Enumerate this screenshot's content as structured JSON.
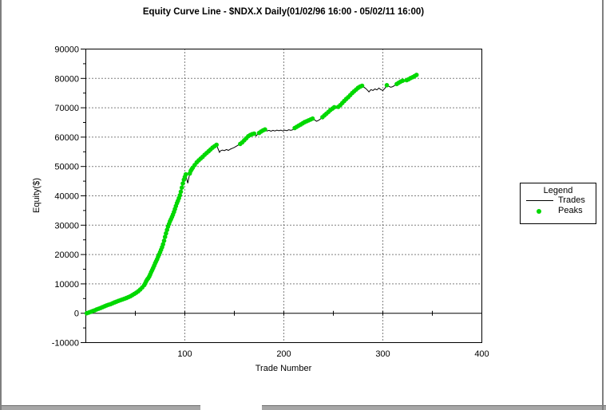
{
  "chart": {
    "title": "Equity Curve Line - $NDX.X Daily(01/02/96 16:00 - 05/02/11 16:00)",
    "x_axis": {
      "label": "Trade Number",
      "tick_labels": [
        100,
        200,
        300,
        400
      ],
      "minor_tick_step": 50,
      "min": 0,
      "max": 400
    },
    "y_axis": {
      "label": "Equity($)",
      "tick_labels": [
        90000,
        80000,
        70000,
        60000,
        50000,
        40000,
        30000,
        20000,
        10000,
        0,
        -10000
      ],
      "minor_tick_step": 5000,
      "min": -10000,
      "max": 90000
    },
    "legend": {
      "title": "Legend",
      "items": [
        {
          "label": "Trades",
          "type": "line",
          "color": "#000000"
        },
        {
          "label": "Peaks",
          "type": "dot",
          "color": "#00d800"
        }
      ]
    }
  },
  "chart_data": {
    "type": "line",
    "title": "Equity Curve Line - $NDX.X Daily(01/02/96 16:00 - 05/02/11 16:00)",
    "xlabel": "Trade Number",
    "ylabel": "Equity($)",
    "xlim": [
      0,
      400
    ],
    "ylim": [
      -10000,
      90000
    ],
    "grid": "dotted horizontal every 10000 (10000-80000), dotted vertical at 100/200/300, solid zero line with ticks every 50 trades",
    "legend_position": "right",
    "series": [
      {
        "name": "Trades",
        "style": "line",
        "color": "#000000",
        "points": [
          [
            1,
            0
          ],
          [
            3,
            250
          ],
          [
            5,
            500
          ],
          [
            7,
            750
          ],
          [
            9,
            1000
          ],
          [
            11,
            1300
          ],
          [
            13,
            1550
          ],
          [
            15,
            1800
          ],
          [
            17,
            2100
          ],
          [
            19,
            2400
          ],
          [
            21,
            2650
          ],
          [
            23,
            2900
          ],
          [
            25,
            3100
          ],
          [
            27,
            3400
          ],
          [
            29,
            3700
          ],
          [
            31,
            3950
          ],
          [
            33,
            4200
          ],
          [
            35,
            4450
          ],
          [
            37,
            4700
          ],
          [
            39,
            4950
          ],
          [
            41,
            5200
          ],
          [
            43,
            5500
          ],
          [
            45,
            5800
          ],
          [
            47,
            6200
          ],
          [
            49,
            6600
          ],
          [
            51,
            7000
          ],
          [
            53,
            7500
          ],
          [
            55,
            8100
          ],
          [
            57,
            8800
          ],
          [
            59,
            9600
          ],
          [
            60,
            10200
          ],
          [
            61,
            10900
          ],
          [
            62,
            11500
          ],
          [
            63,
            11900
          ],
          [
            64,
            12500
          ],
          [
            65,
            13200
          ],
          [
            66,
            14000
          ],
          [
            67,
            14700
          ],
          [
            68,
            15400
          ],
          [
            69,
            16200
          ],
          [
            70,
            17000
          ],
          [
            71,
            17700
          ],
          [
            72,
            18400
          ],
          [
            73,
            19200
          ],
          [
            74,
            20000
          ],
          [
            75,
            20800
          ],
          [
            76,
            21600
          ],
          [
            77,
            22500
          ],
          [
            78,
            23500
          ],
          [
            79,
            24700
          ],
          [
            80,
            26000
          ],
          [
            81,
            27200
          ],
          [
            82,
            28400
          ],
          [
            83,
            29500
          ],
          [
            84,
            30400
          ],
          [
            85,
            31300
          ],
          [
            86,
            32000
          ],
          [
            87,
            32800
          ],
          [
            88,
            33600
          ],
          [
            89,
            34500
          ],
          [
            90,
            35500
          ],
          [
            91,
            36500
          ],
          [
            92,
            37500
          ],
          [
            93,
            38300
          ],
          [
            94,
            39200
          ],
          [
            95,
            40200
          ],
          [
            96,
            41400
          ],
          [
            97,
            42800
          ],
          [
            98,
            44200
          ],
          [
            99,
            45500
          ],
          [
            100,
            46400
          ],
          [
            101,
            47300
          ],
          [
            102,
            45600
          ],
          [
            103,
            44300
          ],
          [
            104,
            46100
          ],
          [
            105,
            47600
          ],
          [
            106,
            48500
          ],
          [
            107,
            49100
          ],
          [
            108,
            49600
          ],
          [
            110,
            50500
          ],
          [
            112,
            51400
          ],
          [
            114,
            52100
          ],
          [
            116,
            52700
          ],
          [
            118,
            53300
          ],
          [
            120,
            54000
          ],
          [
            122,
            54600
          ],
          [
            124,
            55200
          ],
          [
            126,
            55800
          ],
          [
            128,
            56400
          ],
          [
            130,
            56900
          ],
          [
            132,
            57400
          ],
          [
            133,
            56500
          ],
          [
            134,
            55600
          ],
          [
            135,
            54800
          ],
          [
            136,
            55300
          ],
          [
            138,
            55600
          ],
          [
            140,
            55400
          ],
          [
            142,
            55800
          ],
          [
            144,
            55500
          ],
          [
            146,
            55900
          ],
          [
            148,
            56200
          ],
          [
            150,
            56500
          ],
          [
            152,
            56900
          ],
          [
            154,
            57300
          ],
          [
            156,
            57700
          ],
          [
            158,
            58200
          ],
          [
            160,
            58900
          ],
          [
            162,
            59600
          ],
          [
            164,
            60300
          ],
          [
            166,
            60700
          ],
          [
            168,
            61000
          ],
          [
            170,
            61200
          ],
          [
            171,
            60700
          ],
          [
            172,
            60400
          ],
          [
            173,
            60800
          ],
          [
            175,
            61400
          ],
          [
            177,
            61900
          ],
          [
            179,
            62300
          ],
          [
            181,
            62600
          ],
          [
            183,
            62100
          ],
          [
            185,
            62300
          ],
          [
            187,
            62000
          ],
          [
            189,
            62300
          ],
          [
            191,
            62100
          ],
          [
            193,
            62400
          ],
          [
            195,
            62200
          ],
          [
            197,
            62400
          ],
          [
            199,
            62100
          ],
          [
            201,
            62400
          ],
          [
            203,
            62200
          ],
          [
            205,
            62500
          ],
          [
            207,
            62300
          ],
          [
            209,
            62500
          ],
          [
            211,
            63100
          ],
          [
            213,
            63500
          ],
          [
            215,
            63900
          ],
          [
            217,
            64300
          ],
          [
            219,
            64700
          ],
          [
            221,
            65100
          ],
          [
            223,
            65400
          ],
          [
            225,
            65700
          ],
          [
            227,
            66000
          ],
          [
            229,
            66300
          ],
          [
            231,
            65900
          ],
          [
            233,
            65400
          ],
          [
            235,
            65700
          ],
          [
            237,
            66200
          ],
          [
            239,
            66800
          ],
          [
            241,
            67400
          ],
          [
            243,
            68000
          ],
          [
            245,
            68600
          ],
          [
            247,
            69200
          ],
          [
            249,
            69700
          ],
          [
            251,
            70200
          ],
          [
            253,
            69800
          ],
          [
            255,
            70300
          ],
          [
            257,
            70900
          ],
          [
            259,
            71600
          ],
          [
            261,
            72300
          ],
          [
            263,
            73000
          ],
          [
            265,
            73600
          ],
          [
            267,
            74300
          ],
          [
            269,
            75000
          ],
          [
            271,
            75600
          ],
          [
            273,
            76200
          ],
          [
            275,
            76800
          ],
          [
            277,
            77200
          ],
          [
            279,
            77500
          ],
          [
            281,
            77000
          ],
          [
            283,
            76500
          ],
          [
            285,
            75800
          ],
          [
            286,
            75400
          ],
          [
            288,
            76200
          ],
          [
            290,
            75900
          ],
          [
            292,
            76400
          ],
          [
            294,
            76100
          ],
          [
            296,
            76700
          ],
          [
            298,
            76200
          ],
          [
            300,
            75900
          ],
          [
            302,
            76600
          ],
          [
            304,
            77700
          ],
          [
            306,
            77300
          ],
          [
            308,
            77000
          ],
          [
            310,
            77200
          ],
          [
            312,
            77600
          ],
          [
            314,
            78100
          ],
          [
            316,
            78500
          ],
          [
            318,
            78900
          ],
          [
            320,
            79200
          ],
          [
            322,
            79000
          ],
          [
            324,
            79400
          ],
          [
            326,
            79700
          ],
          [
            328,
            80100
          ],
          [
            330,
            80400
          ],
          [
            332,
            80800
          ],
          [
            334,
            81200
          ]
        ]
      },
      {
        "name": "Peaks",
        "style": "dot",
        "color": "#00d800",
        "derived": "dot drawn at every point of the Trades series that sets a new running-maximum equity high"
      }
    ]
  },
  "window": {
    "background": "#ffffff",
    "border_color": "#7f7f7f",
    "statusbar_color": "#a6a6a6"
  }
}
